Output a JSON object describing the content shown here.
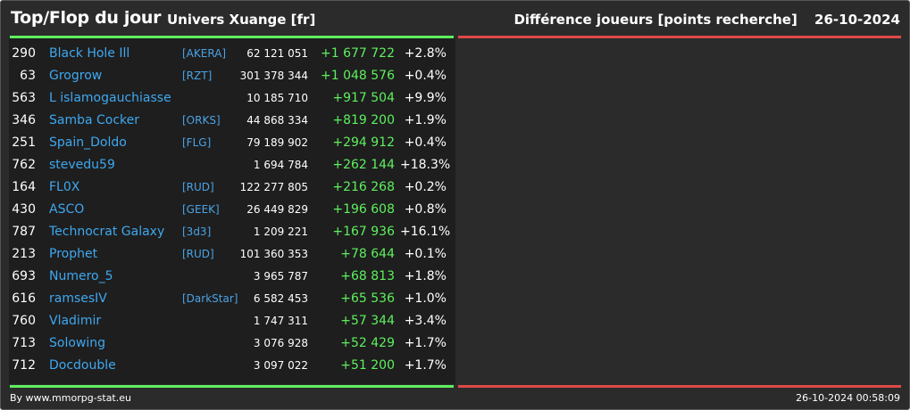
{
  "header": {
    "title": "Top/Flop du jour",
    "subtitle": "Univers Xuange [fr]",
    "metric": "Différence joueurs [points recherche]",
    "date": "26-10-2024"
  },
  "colors": {
    "positive": "#5ef05e",
    "negative": "#e04848",
    "name": "#3fa8f0",
    "background": "#2b2b2b"
  },
  "top": [
    {
      "rank": "290",
      "name": "Black Hole Ill",
      "ally": "[AKERA]",
      "points": "62 121 051",
      "diff": "+1 677 722",
      "pct": "+2.8%"
    },
    {
      "rank": "63",
      "name": "Grogrow",
      "ally": "[RZT]",
      "points": "301 378 344",
      "diff": "+1 048 576",
      "pct": "+0.4%"
    },
    {
      "rank": "563",
      "name": "L islamogauchiasse",
      "ally": "",
      "points": "10 185 710",
      "diff": "+917 504",
      "pct": "+9.9%"
    },
    {
      "rank": "346",
      "name": "Samba Cocker",
      "ally": "[ORKS]",
      "points": "44 868 334",
      "diff": "+819 200",
      "pct": "+1.9%"
    },
    {
      "rank": "251",
      "name": "Spain_Doldo",
      "ally": "[FLG]",
      "points": "79 189 902",
      "diff": "+294 912",
      "pct": "+0.4%"
    },
    {
      "rank": "762",
      "name": "stevedu59",
      "ally": "",
      "points": "1 694 784",
      "diff": "+262 144",
      "pct": "+18.3%"
    },
    {
      "rank": "164",
      "name": "FL0X",
      "ally": "[RUD]",
      "points": "122 277 805",
      "diff": "+216 268",
      "pct": "+0.2%"
    },
    {
      "rank": "430",
      "name": "ASCO",
      "ally": "[GEEK]",
      "points": "26 449 829",
      "diff": "+196 608",
      "pct": "+0.8%"
    },
    {
      "rank": "787",
      "name": "Technocrat Galaxy",
      "ally": "[3d3]",
      "points": "1 209 221",
      "diff": "+167 936",
      "pct": "+16.1%"
    },
    {
      "rank": "213",
      "name": "Prophet",
      "ally": "[RUD]",
      "points": "101 360 353",
      "diff": "+78 644",
      "pct": "+0.1%"
    },
    {
      "rank": "693",
      "name": "Numero_5",
      "ally": "",
      "points": "3 965 787",
      "diff": "+68 813",
      "pct": "+1.8%"
    },
    {
      "rank": "616",
      "name": "ramsesIV",
      "ally": "[DarkStar]",
      "points": "6 582 453",
      "diff": "+65 536",
      "pct": "+1.0%"
    },
    {
      "rank": "760",
      "name": "Vladimir",
      "ally": "",
      "points": "1 747 311",
      "diff": "+57 344",
      "pct": "+3.4%"
    },
    {
      "rank": "713",
      "name": "Solowing",
      "ally": "",
      "points": "3 076 928",
      "diff": "+52 429",
      "pct": "+1.7%"
    },
    {
      "rank": "712",
      "name": "Docdouble",
      "ally": "",
      "points": "3 097 022",
      "diff": "+51 200",
      "pct": "+1.7%"
    }
  ],
  "flop": [],
  "footer": {
    "credit": "By www.mmorpg-stat.eu",
    "timestamp": "26-10-2024 00:58:09"
  }
}
